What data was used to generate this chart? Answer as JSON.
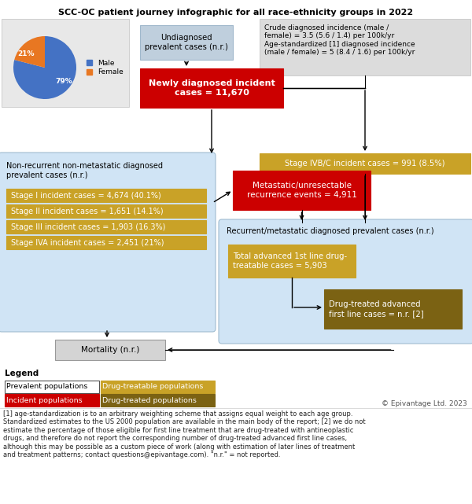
{
  "title": "SCC-OC patient journey infographic for all race-ethnicity groups in 2022",
  "pie_values": [
    79,
    21
  ],
  "pie_colors": [
    "#4472C4",
    "#E87722"
  ],
  "pie_labels": [
    "79%",
    "21%"
  ],
  "pie_legend": [
    "Male",
    "Female"
  ],
  "bg_color": "#FFFFFF",
  "note_text": "Crude diagnosed incidence (male /\nfemale) = 3.5 (5.6 / 1.4) per 100k/yr\nAge-standardized [1] diagnosed incidence\n(male / female) = 5 (8.4 / 1.6) per 100k/yr",
  "undiag_text": "Undiagnosed\nprevalent cases (n.r.)",
  "newly_diag_text": "Newly diagnosed incident\ncases = 11,670",
  "stage_ivbc_text": "Stage IVB/C incident cases = 991 (8.5%)",
  "non_recur_text": "Non-recurrent non-metastatic diagnosed\nprevalent cases (n.r.)",
  "metastatic_text": "Metastatic/unresectable\nrecurrence events = 4,911",
  "stage_bars": [
    "Stage I incident cases = 4,674 (40.1%)",
    "Stage II incident cases = 1,651 (14.1%)",
    "Stage III incident cases = 1,903 (16.3%)",
    "Stage IVA incident cases = 2,451 (21%)"
  ],
  "recur_prev_text": "Recurrent/metastatic diagnosed prevalent cases (n.r.)",
  "total_adv_text": "Total advanced 1st line drug-\ntreatable cases = 5,903",
  "drug_treated_text": "Drug-treated advanced\nfirst line cases = n.r. [2]",
  "mortality_text": "Mortality (n.r.)",
  "legend_items": [
    {
      "label": "Prevalent populations",
      "color": "#FFFFFF",
      "text_color": "#000000",
      "border": "#555555"
    },
    {
      "label": "Drug-treatable populations",
      "color": "#C9A227",
      "text_color": "#FFFFFF",
      "border": "#C9A227"
    },
    {
      "label": "Incident populations",
      "color": "#CC0000",
      "text_color": "#FFFFFF",
      "border": "#CC0000"
    },
    {
      "label": "Drug-treated populations",
      "color": "#7B6213",
      "text_color": "#FFFFFF",
      "border": "#7B6213"
    }
  ],
  "footnotes": "[1] age-standardization is to an arbitrary weighting scheme that assigns equal weight to each age group.\nStandardized estimates to the US 2000 population are available in the main body of the report; [2] we do not\nestimate the percentage of those eligible for first line treatment that are drug-treated with antineoplastic\ndrugs, and therefore do not report the corresponding number of drug-treated advanced first line cases,\nalthough this may be possible as a custom piece of work (along with estimation of later lines of treatment\nand treatment patterns; contact questions@epivantage.com). \"n.r.\" = not reported.",
  "copyright": "© Epivantage Ltd. 2023",
  "colors": {
    "red": "#CC0000",
    "gold": "#C9A227",
    "dark_gold": "#7B6213",
    "light_blue": "#C8DCF0",
    "light_blue_bg": "#D0E4F5",
    "undiag_blue": "#BFCFDD",
    "gray_note": "#DCDCDC",
    "gray_mort": "#D4D4D4",
    "pie_bg": "#E8E8E8"
  }
}
